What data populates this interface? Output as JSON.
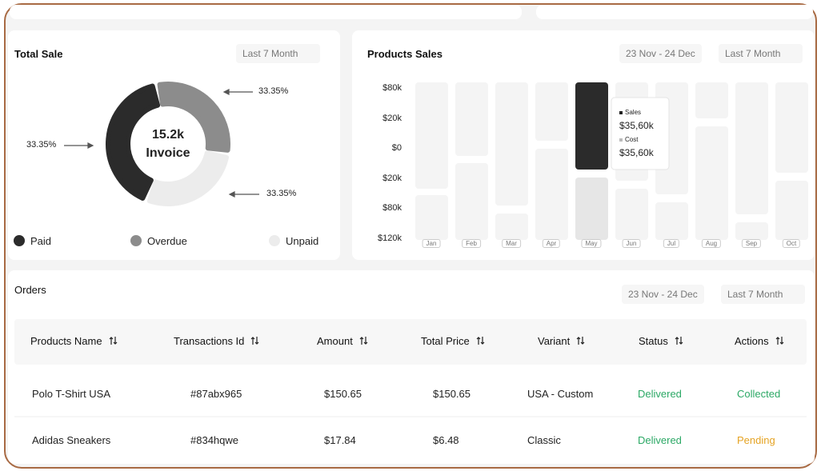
{
  "total_sale": {
    "title": "Total Sale",
    "filter": "Last 7 Month",
    "center_value": "15.2k",
    "center_label": "Invoice",
    "segment_labels": [
      "33.35%",
      "33.35%",
      "33.35%"
    ],
    "legend": [
      "Paid",
      "Overdue",
      "Unpaid"
    ]
  },
  "products_sales": {
    "title": "Products Sales",
    "date_range": "23 Nov - 24 Dec",
    "filter": "Last 7 Month",
    "y_labels": [
      "$80k",
      "$20k",
      "$0",
      "$20k",
      "$80k",
      "$120k"
    ],
    "months": [
      "Jan",
      "Feb",
      "Mar",
      "Apr",
      "May",
      "Jun",
      "Jul",
      "Aug",
      "Sep",
      "Oct"
    ],
    "tooltip": {
      "sales_label": "Sales",
      "sales_value": "$35,60k",
      "cost_label": "Cost",
      "cost_value": "$35,60k"
    }
  },
  "orders": {
    "title": "Orders",
    "date_range": "23 Nov - 24 Dec",
    "filter": "Last 7 Month",
    "columns": [
      "Products Name",
      "Transactions Id",
      "Amount",
      "Total Price",
      "Variant",
      "Status",
      "Actions"
    ],
    "rows": [
      [
        "Polo T-Shirt USA",
        "#87abx965",
        "$150.65",
        "$150.65",
        "USA - Custom",
        "Delivered",
        "Collected"
      ],
      [
        "Adidas Sneakers",
        "#834hqwe",
        "$17.84",
        "$6.48",
        "Classic",
        "Delivered",
        "Pending"
      ]
    ]
  }
}
